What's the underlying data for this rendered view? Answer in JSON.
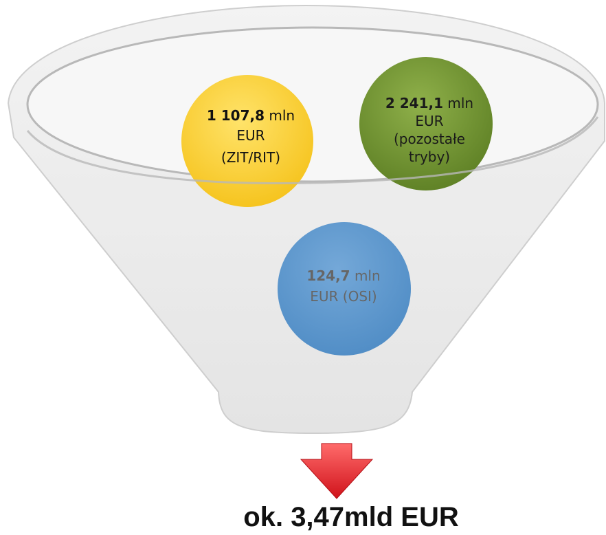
{
  "nodes": [
    {
      "value": "1 107,8",
      "unit": "mln",
      "lines": [
        "EUR",
        "(ZIT/RIT)"
      ]
    },
    {
      "value": "2 241,1",
      "unit": "mln",
      "lines": [
        "EUR",
        "(pozostałe",
        "tryby)"
      ]
    },
    {
      "value": "124,7",
      "unit": "mln",
      "lines": [
        "EUR (OSI)"
      ]
    }
  ],
  "total": "ok. 3,47mld EUR"
}
